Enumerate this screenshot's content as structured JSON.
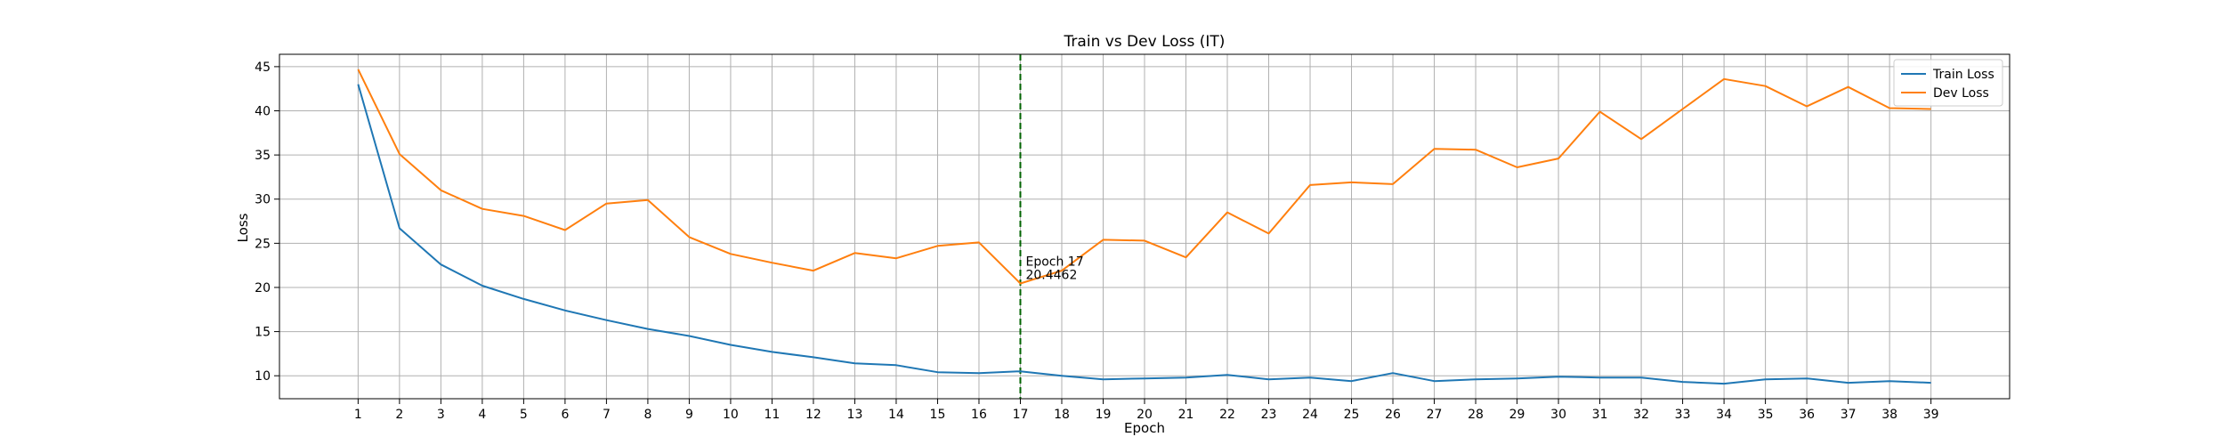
{
  "chart_data": {
    "type": "line",
    "title": "Train vs Dev Loss (IT)",
    "xlabel": "Epoch",
    "ylabel": "Loss",
    "x": [
      1,
      2,
      3,
      4,
      5,
      6,
      7,
      8,
      9,
      10,
      11,
      12,
      13,
      14,
      15,
      16,
      17,
      18,
      19,
      20,
      21,
      22,
      23,
      24,
      25,
      26,
      27,
      28,
      29,
      30,
      31,
      32,
      33,
      34,
      35,
      36,
      37,
      38,
      39
    ],
    "yticks": [
      10,
      15,
      20,
      25,
      30,
      35,
      40,
      45
    ],
    "ylim": [
      7.4,
      46.4
    ],
    "xlim": [
      -0.9,
      40.9
    ],
    "grid": true,
    "legend_position": "top-right",
    "series": [
      {
        "name": "Train Loss",
        "color": "#1f77b4",
        "values": [
          43.0,
          26.7,
          22.6,
          20.2,
          18.7,
          17.4,
          16.3,
          15.3,
          14.5,
          13.5,
          12.7,
          12.1,
          11.4,
          11.2,
          10.4,
          10.3,
          10.5,
          10.0,
          9.6,
          9.7,
          9.8,
          10.1,
          9.6,
          9.8,
          9.4,
          10.3,
          9.4,
          9.6,
          9.7,
          9.9,
          9.8,
          9.8,
          9.3,
          9.1,
          9.6,
          9.7,
          9.2,
          9.4,
          9.2
        ]
      },
      {
        "name": "Dev Loss",
        "color": "#ff7f0e",
        "values": [
          44.7,
          35.1,
          31.0,
          28.9,
          28.1,
          26.5,
          29.5,
          29.9,
          25.7,
          23.8,
          22.8,
          21.9,
          23.9,
          23.3,
          24.7,
          25.1,
          20.4462,
          21.9,
          25.4,
          25.3,
          23.4,
          28.5,
          26.1,
          31.6,
          31.9,
          31.7,
          35.7,
          35.6,
          33.6,
          34.6,
          39.9,
          36.8,
          40.2,
          43.6,
          42.8,
          40.5,
          42.7,
          40.3,
          40.2
        ]
      }
    ],
    "vline": {
      "x": 17,
      "color": "#006400",
      "style": "dashed"
    },
    "annotation": {
      "line1": "Epoch 17",
      "line2": "20.4462",
      "x": 17,
      "y": 20.4462
    }
  }
}
